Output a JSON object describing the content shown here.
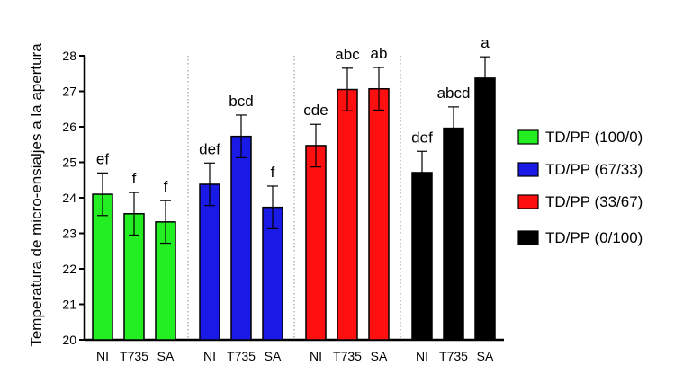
{
  "chart_data": {
    "type": "bar",
    "ylabel": "Temperatura de micro-ensialjes a la apertura",
    "xlabel": "",
    "ylim": [
      20,
      28
    ],
    "yticks": [
      20,
      21,
      22,
      23,
      24,
      25,
      26,
      27,
      28
    ],
    "categories": [
      "NI",
      "T735",
      "SA"
    ],
    "grid": false,
    "legend_position": "right",
    "series": [
      {
        "name": "TD/PP (100/0)",
        "color": "#22ee22",
        "values": [
          24.1,
          23.55,
          23.32
        ],
        "errors": [
          0.6,
          0.6,
          0.6
        ],
        "letters": [
          "ef",
          "f",
          "f"
        ]
      },
      {
        "name": "TD/PP (67/33)",
        "color": "#1a1ae6",
        "values": [
          24.38,
          25.73,
          23.73
        ],
        "errors": [
          0.6,
          0.6,
          0.6
        ],
        "letters": [
          "def",
          "bcd",
          "f"
        ]
      },
      {
        "name": "TD/PP (33/67)",
        "color": "#ff0f0f",
        "values": [
          25.47,
          27.05,
          27.07
        ],
        "errors": [
          0.6,
          0.6,
          0.6
        ],
        "letters": [
          "cde",
          "abc",
          "ab"
        ]
      },
      {
        "name": "TD/PP (0/100)",
        "color": "#000000",
        "values": [
          24.71,
          25.96,
          27.37
        ],
        "errors": [
          0.6,
          0.6,
          0.6
        ],
        "letters": [
          "def",
          "abcd",
          "a"
        ]
      }
    ]
  }
}
